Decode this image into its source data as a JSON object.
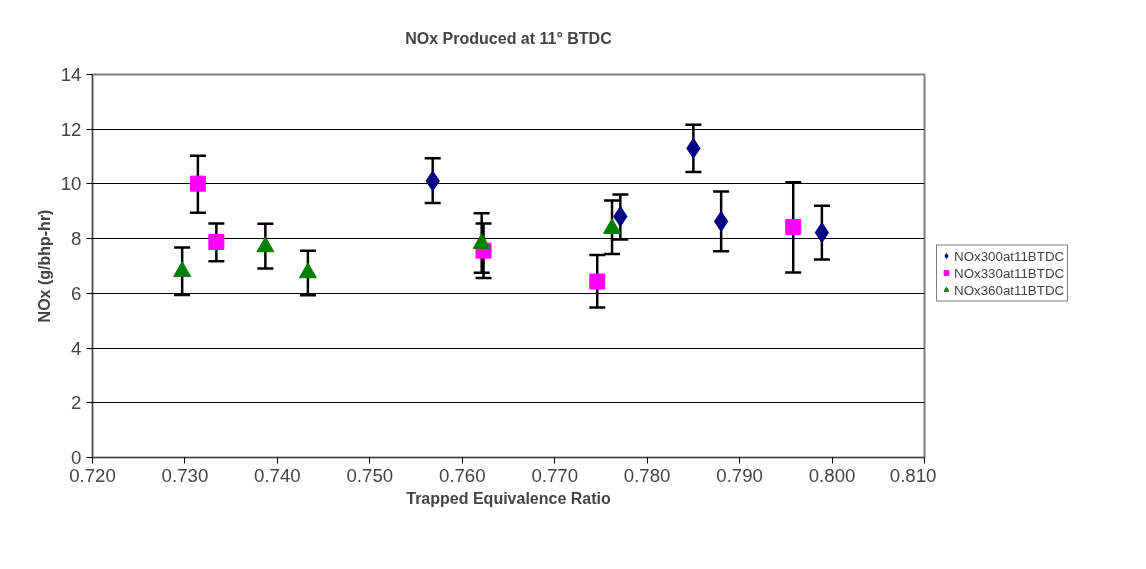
{
  "chart_data": {
    "type": "scatter",
    "title": "NOx Produced at 11° BTDC",
    "xlabel": "Trapped Equivalence Ratio",
    "ylabel": "NOx (g/bhp-hr)",
    "xlim": [
      0.72,
      0.81
    ],
    "xticks": [
      {
        "value": 0.72,
        "label": "0.720"
      },
      {
        "value": 0.73,
        "label": "0.730"
      },
      {
        "value": 0.74,
        "label": "0.740"
      },
      {
        "value": 0.75,
        "label": "0.750"
      },
      {
        "value": 0.76,
        "label": "0.760"
      },
      {
        "value": 0.77,
        "label": "0.770"
      },
      {
        "value": 0.78,
        "label": "0.780"
      },
      {
        "value": 0.79,
        "label": "0.790"
      },
      {
        "value": 0.8,
        "label": "0.800"
      },
      {
        "value": 0.81,
        "label": "0.810"
      }
    ],
    "ylim": [
      0,
      14
    ],
    "yticks": [
      0,
      2,
      4,
      6,
      8,
      10,
      12,
      14
    ],
    "grid": "y",
    "legend": "right",
    "series": [
      {
        "name": "NOx300at11BTDC",
        "color": "#000080",
        "marker": "diamond",
        "x": [
          0.7568,
          0.7771,
          0.785,
          0.788,
          0.7989
        ],
        "values": [
          10.11,
          8.81,
          11.3,
          8.63,
          8.22
        ],
        "errors": [
          [
            9.3,
            10.94
          ],
          [
            7.97,
            9.61
          ],
          [
            10.44,
            12.16
          ],
          [
            7.54,
            9.72
          ],
          [
            7.24,
            9.2
          ]
        ]
      },
      {
        "name": "NOx330at11BTDC",
        "color": "#ff00ff",
        "marker": "square",
        "x": [
          0.7314,
          0.7334,
          0.7623,
          0.7746,
          0.7958
        ],
        "values": [
          10.01,
          7.88,
          7.56,
          6.43,
          8.43
        ],
        "errors": [
          [
            8.95,
            11.03
          ],
          [
            7.17,
            8.55
          ],
          [
            6.56,
            8.55
          ],
          [
            5.48,
            7.4
          ],
          [
            6.76,
            10.06
          ]
        ]
      },
      {
        "name": "NOx360at11BTDC",
        "color": "#008000",
        "marker": "triangle",
        "x": [
          0.7297,
          0.7387,
          0.7433,
          0.7621,
          0.7762
        ],
        "values": [
          6.8,
          7.7,
          6.75,
          7.82,
          8.37
        ],
        "errors": [
          [
            5.94,
            7.68
          ],
          [
            6.91,
            8.54
          ],
          [
            5.93,
            7.56
          ],
          [
            6.75,
            8.93
          ],
          [
            7.44,
            9.39
          ]
        ]
      }
    ]
  }
}
